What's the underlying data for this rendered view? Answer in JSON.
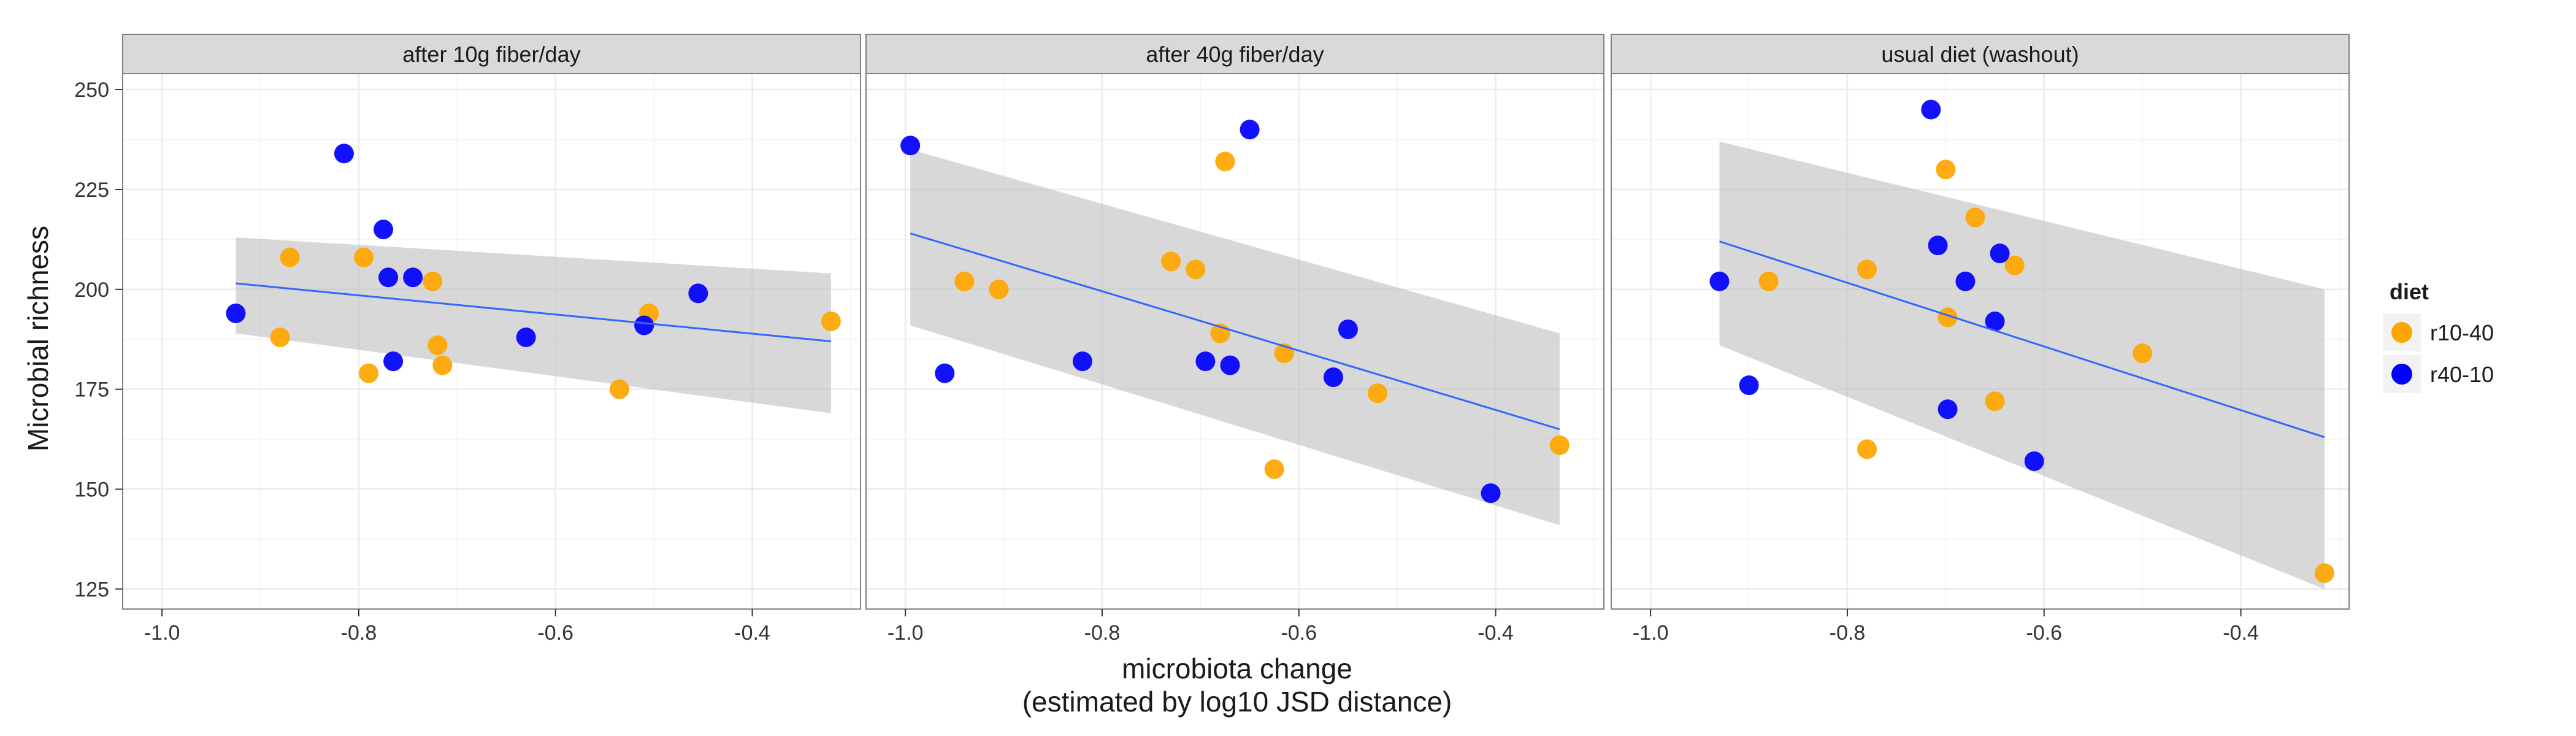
{
  "chart_data": {
    "type": "scatter",
    "facets": [
      "after 10g fiber/day",
      "after 40g fiber/day",
      "usual diet (washout)"
    ],
    "xlabel": [
      "microbiota change",
      "(estimated by log10 JSD distance)"
    ],
    "ylabel": "Microbial richness",
    "xlim": [
      -1.04,
      -0.29
    ],
    "ylim": [
      120,
      254
    ],
    "xticks": [
      -1.0,
      -0.8,
      -0.6,
      -0.4
    ],
    "xtick_labels": [
      "-1.0",
      "-0.8",
      "-0.6",
      "-0.4"
    ],
    "yticks": [
      125,
      150,
      175,
      200,
      225,
      250
    ],
    "ytick_labels": [
      "125",
      "150",
      "175",
      "200",
      "225",
      "250"
    ],
    "grid": true,
    "legend": {
      "title": "diet",
      "position": "right",
      "entries": [
        {
          "label": "r10-40",
          "color": "#FFA500"
        },
        {
          "label": "r40-10",
          "color": "#0000FF"
        }
      ]
    },
    "colors": {
      "r10-40": "#FFA500",
      "r40-10": "#0000FF",
      "fit_line": "#3366FF",
      "ribbon": "#BEBEBE"
    },
    "panels": [
      {
        "facet": "after 10g fiber/day",
        "series": [
          {
            "name": "r10-40",
            "points": [
              [
                -0.87,
                208
              ],
              [
                -0.88,
                188
              ],
              [
                -0.795,
                208
              ],
              [
                -0.79,
                179
              ],
              [
                -0.725,
                202
              ],
              [
                -0.72,
                186
              ],
              [
                -0.715,
                181
              ],
              [
                -0.535,
                175
              ],
              [
                -0.505,
                194
              ],
              [
                -0.32,
                192
              ]
            ]
          },
          {
            "name": "r40-10",
            "points": [
              [
                -0.925,
                194
              ],
              [
                -0.815,
                234
              ],
              [
                -0.775,
                215
              ],
              [
                -0.77,
                203
              ],
              [
                -0.765,
                182
              ],
              [
                -0.745,
                203
              ],
              [
                -0.63,
                188
              ],
              [
                -0.51,
                191
              ],
              [
                -0.455,
                199
              ]
            ]
          }
        ],
        "fit": {
          "x": [
            -0.925,
            -0.32
          ],
          "y": [
            201.5,
            187
          ],
          "ci_lower": [
            189,
            169
          ],
          "ci_upper": [
            213,
            204
          ]
        }
      },
      {
        "facet": "after 40g fiber/day",
        "series": [
          {
            "name": "r10-40",
            "points": [
              [
                -0.94,
                202
              ],
              [
                -0.905,
                200
              ],
              [
                -0.73,
                207
              ],
              [
                -0.705,
                205
              ],
              [
                -0.68,
                189
              ],
              [
                -0.675,
                232
              ],
              [
                -0.625,
                155
              ],
              [
                -0.615,
                184
              ],
              [
                -0.52,
                174
              ],
              [
                -0.335,
                161
              ]
            ]
          },
          {
            "name": "r40-10",
            "points": [
              [
                -0.995,
                236
              ],
              [
                -0.96,
                179
              ],
              [
                -0.82,
                182
              ],
              [
                -0.695,
                182
              ],
              [
                -0.67,
                181
              ],
              [
                -0.65,
                240
              ],
              [
                -0.565,
                178
              ],
              [
                -0.55,
                190
              ],
              [
                -0.405,
                149
              ]
            ]
          }
        ],
        "fit": {
          "x": [
            -0.995,
            -0.335
          ],
          "y": [
            214,
            165
          ],
          "ci_lower": [
            191,
            141
          ],
          "ci_upper": [
            235,
            189
          ]
        }
      },
      {
        "facet": "usual diet (washout)",
        "series": [
          {
            "name": "r10-40",
            "points": [
              [
                -0.88,
                202
              ],
              [
                -0.78,
                205
              ],
              [
                -0.78,
                160
              ],
              [
                -0.7,
                230
              ],
              [
                -0.698,
                193
              ],
              [
                -0.67,
                218
              ],
              [
                -0.65,
                172
              ],
              [
                -0.63,
                206
              ],
              [
                -0.5,
                184
              ],
              [
                -0.315,
                129
              ]
            ]
          },
          {
            "name": "r40-10",
            "points": [
              [
                -0.93,
                202
              ],
              [
                -0.9,
                176
              ],
              [
                -0.715,
                245
              ],
              [
                -0.708,
                211
              ],
              [
                -0.698,
                170
              ],
              [
                -0.68,
                202
              ],
              [
                -0.645,
                209
              ],
              [
                -0.65,
                192
              ],
              [
                -0.61,
                157
              ]
            ]
          }
        ],
        "fit": {
          "x": [
            -0.93,
            -0.315
          ],
          "y": [
            212,
            163
          ],
          "ci_lower": [
            186,
            125
          ],
          "ci_upper": [
            237,
            200
          ]
        }
      }
    ]
  }
}
